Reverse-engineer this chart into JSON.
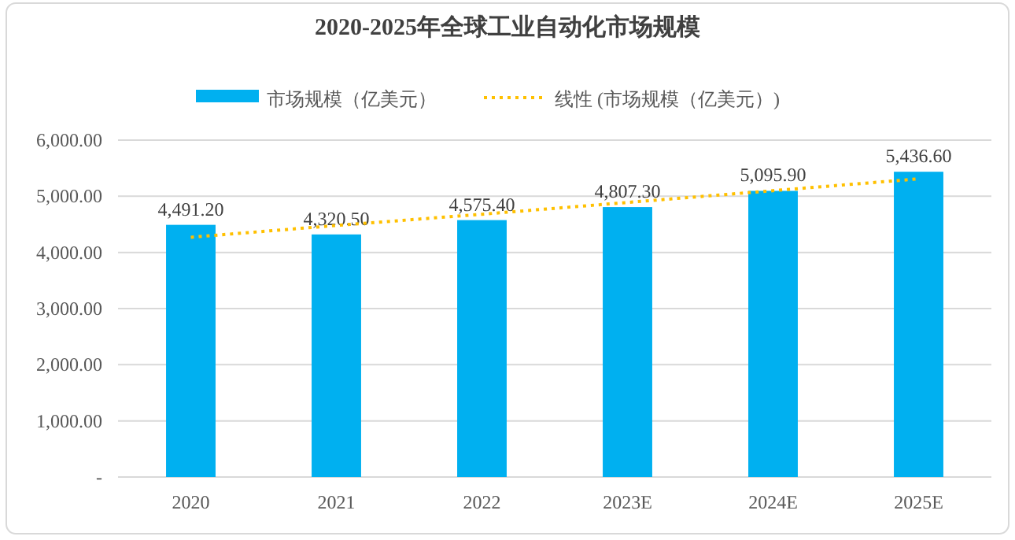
{
  "chart_data": {
    "type": "bar",
    "title": "2020-2025年全球工业自动化市场规模",
    "categories": [
      "2020",
      "2021",
      "2022",
      "2023E",
      "2024E",
      "2025E"
    ],
    "series": [
      {
        "name": "市场规模（亿美元）",
        "color": "#00b0f0",
        "values": [
          4491.2,
          4320.5,
          4575.4,
          4807.3,
          5095.9,
          5436.6
        ],
        "value_labels": [
          "4,491.20",
          "4,320.50",
          "4,575.40",
          "4,807.30",
          "5,095.90",
          "5,436.60"
        ]
      },
      {
        "name": "线性 (市场规模（亿美元）)",
        "type": "line",
        "color": "#ffc000",
        "line_style": "dotted",
        "values": [
          4270,
          4480,
          4680,
          4890,
          5100,
          5310
        ]
      }
    ],
    "ylim": [
      0,
      6000
    ],
    "yticks": [
      {
        "value": 0,
        "label": "-"
      },
      {
        "value": 1000,
        "label": "1,000.00"
      },
      {
        "value": 2000,
        "label": "2,000.00"
      },
      {
        "value": 3000,
        "label": "3,000.00"
      },
      {
        "value": 4000,
        "label": "4,000.00"
      },
      {
        "value": 5000,
        "label": "5,000.00"
      },
      {
        "value": 6000,
        "label": "6,000.00"
      }
    ],
    "grid": "y",
    "legend": "top"
  }
}
